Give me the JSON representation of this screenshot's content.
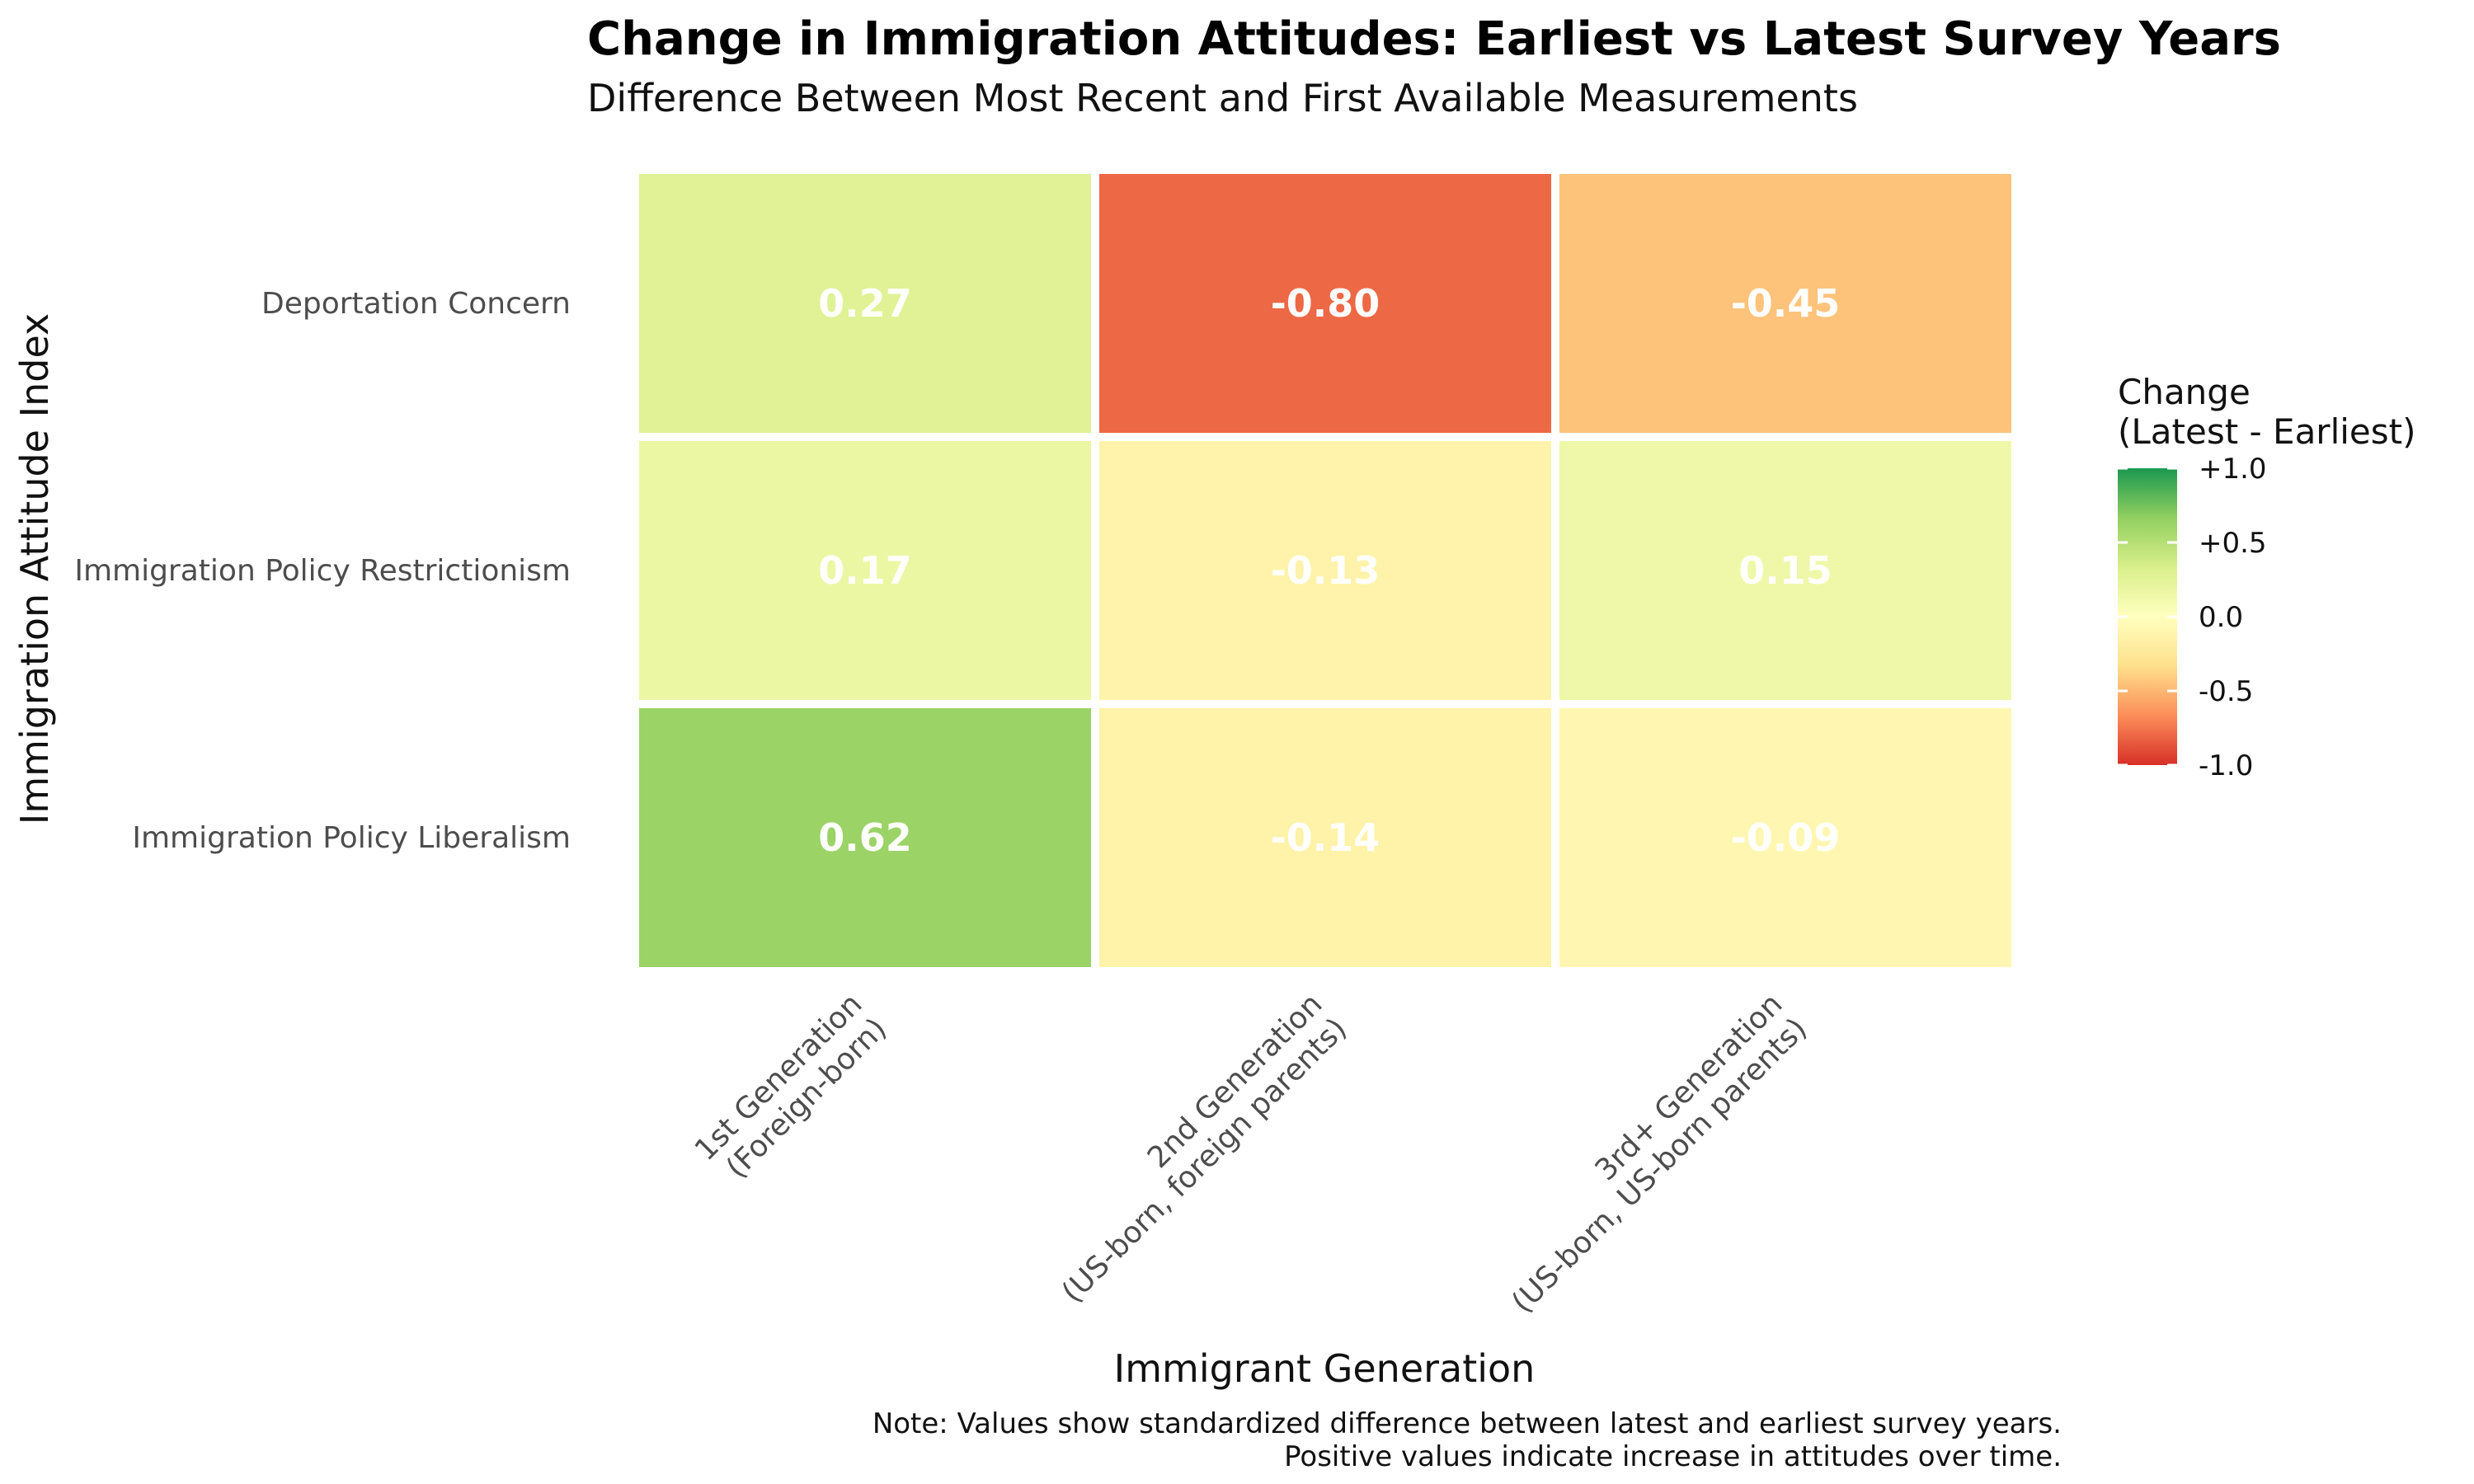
{
  "chart_data": {
    "type": "heatmap",
    "title": "Change in Immigration Attitudes: Earliest vs Latest Survey Years",
    "subtitle": "Difference Between Most Recent and First Available Measurements",
    "xlabel": "Immigrant Generation",
    "ylabel": "Immigration Attitude Index",
    "x_categories": [
      [
        "1st Generation",
        "(Foreign-born)"
      ],
      [
        "2nd Generation",
        "(US-born, foreign parents)"
      ],
      [
        "3rd+ Generation",
        "(US-born, US-born parents)"
      ]
    ],
    "y_categories": [
      "Deportation Concern",
      "Immigration Policy Restrictionism",
      "Immigration Policy Liberalism"
    ],
    "values": [
      [
        0.27,
        -0.8,
        -0.45
      ],
      [
        0.17,
        -0.13,
        0.15
      ],
      [
        0.62,
        -0.14,
        -0.09
      ]
    ],
    "value_labels": [
      [
        "0.27",
        "-0.80",
        "-0.45"
      ],
      [
        "0.17",
        "-0.13",
        "0.15"
      ],
      [
        "0.62",
        "-0.14",
        "-0.09"
      ]
    ],
    "color_scale": {
      "title_lines": [
        "Change",
        "(Latest - Earliest)"
      ],
      "limits": [
        -1.0,
        1.0
      ],
      "ticks": [
        1.0,
        0.5,
        0.0,
        -0.5,
        -1.0
      ],
      "tick_labels": [
        "+1.0",
        "+0.5",
        "0.0",
        "-0.5",
        "-1.0"
      ],
      "colors": [
        "#d73027",
        "#fc8d59",
        "#fee08b",
        "#ffffbf",
        "#d9ef8b",
        "#91cf60",
        "#1a9850"
      ],
      "legend_position": "right"
    },
    "grid": false
  },
  "note": {
    "line1": "Note: Values show standardized difference between latest and earliest survey years.",
    "line2": "Positive values indicate increase in attitudes over time."
  }
}
